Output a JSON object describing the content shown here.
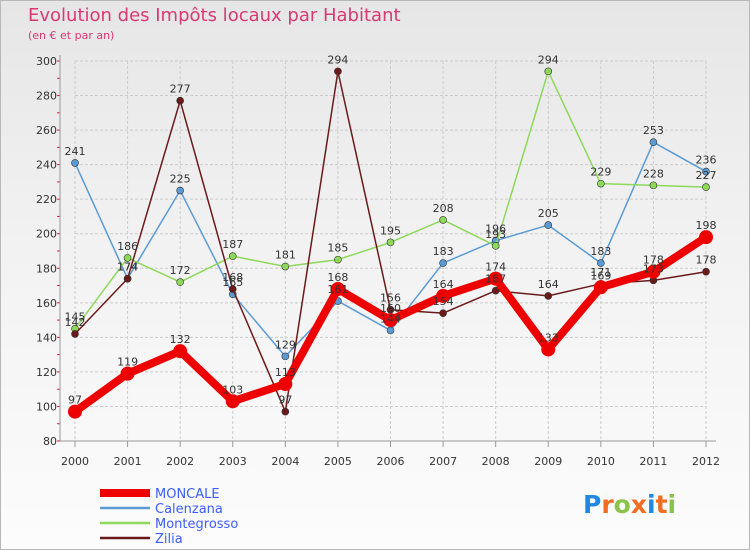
{
  "chart_data": {
    "type": "line",
    "title": "Evolution des Impôts locaux par Habitant",
    "subtitle": "(en € et par an)",
    "xlabel": "",
    "ylabel": "",
    "x": [
      "2000",
      "2001",
      "2002",
      "2003",
      "2004",
      "2005",
      "2006",
      "2007",
      "2008",
      "2009",
      "2010",
      "2011",
      "2012"
    ],
    "ylim": [
      80,
      300
    ],
    "yticks": [
      "80",
      "100",
      "120",
      "140",
      "160",
      "180",
      "200",
      "220",
      "240",
      "260",
      "280",
      "300"
    ],
    "grid": true,
    "legend": "bottom-left",
    "series": [
      {
        "name": "Calenzana",
        "color": "#5b9bd5",
        "values": [
          241,
          174,
          225,
          165,
          129,
          161,
          144,
          183,
          196,
          205,
          183,
          253,
          236
        ]
      },
      {
        "name": "Montegrosso",
        "color": "#8ed85a",
        "values": [
          145,
          186,
          172,
          187,
          181,
          185,
          195,
          208,
          193,
          294,
          229,
          228,
          227
        ]
      },
      {
        "name": "Zilia",
        "color": "#6b1a1a",
        "values": [
          142,
          174,
          277,
          168,
          97,
          294,
          156,
          154,
          167,
          164,
          171,
          173,
          178
        ]
      },
      {
        "name": "MONCALE",
        "color": "#ee0000",
        "values": [
          97,
          119,
          132,
          103,
          113,
          168,
          150,
          164,
          174,
          133,
          169,
          178,
          198
        ]
      }
    ],
    "legend_order": [
      "MONCALE",
      "Calenzana",
      "Montegrosso",
      "Zilia"
    ],
    "watermark": "Proxiti"
  },
  "colors": {
    "title": "#d93872",
    "legend_text": "#3c5cff",
    "grid": "#cccccc",
    "axis": "#999999",
    "left_ticks": "#cc2244"
  }
}
